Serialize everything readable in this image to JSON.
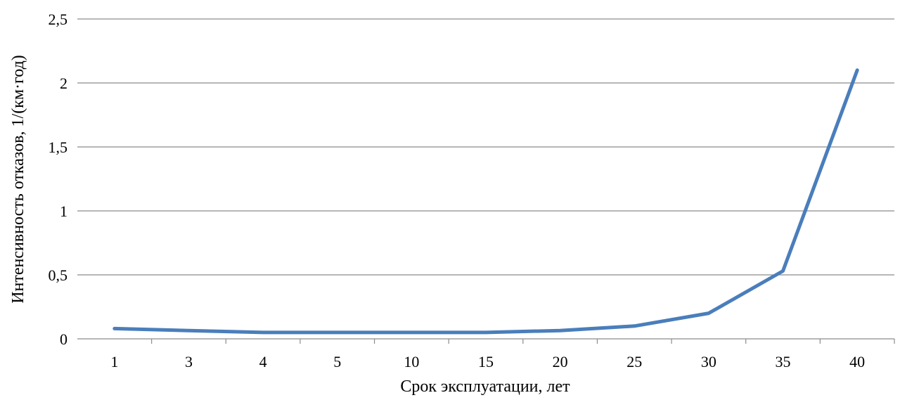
{
  "chart_data": {
    "type": "line",
    "title": "",
    "xlabel": "Срок эксплуатации, лет",
    "ylabel": "Интенсивность отказов, 1/(км·год)",
    "categories": [
      "1",
      "3",
      "4",
      "5",
      "10",
      "15",
      "20",
      "25",
      "30",
      "35",
      "40"
    ],
    "series": [
      {
        "values": [
          0.08,
          0.065,
          0.05,
          0.05,
          0.05,
          0.05,
          0.065,
          0.1,
          0.2,
          0.53,
          2.1
        ],
        "color": "#4a7ebb"
      }
    ],
    "ylim": [
      0,
      2.5
    ],
    "yticks": [
      {
        "value": 0,
        "label": "0"
      },
      {
        "value": 0.5,
        "label": "0,5"
      },
      {
        "value": 1,
        "label": "1"
      },
      {
        "value": 1.5,
        "label": "1,5"
      },
      {
        "value": 2,
        "label": "2"
      },
      {
        "value": 2.5,
        "label": "2,5"
      }
    ],
    "grid": true,
    "grid_color": "#8c8c8c",
    "legend": "none"
  }
}
